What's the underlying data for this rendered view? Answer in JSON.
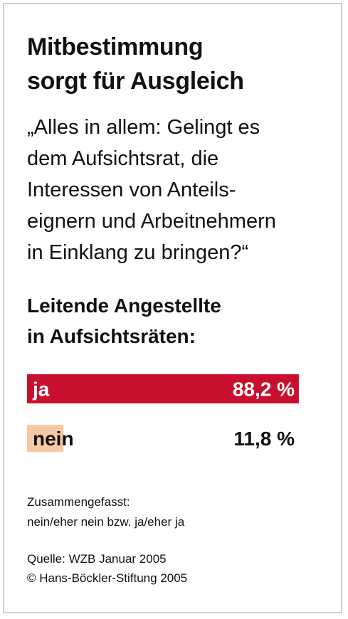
{
  "title_lines": [
    "Mitbestimmung",
    "sorgt für Ausgleich"
  ],
  "question_lines": [
    "„Alles in allem: Gelingt es",
    "dem Aufsichtsrat, die",
    "Interessen von Anteils-",
    "eignern und Arbeitnehmern",
    "in Einklang zu bringen?“"
  ],
  "subtitle_lines": [
    "Leitende Angestellte",
    "in Aufsichtsräten:"
  ],
  "colors": {
    "bar": "#c8102e",
    "bar_text": "#ffffff",
    "value_text": "#111111"
  },
  "chart_data": {
    "type": "bar",
    "orientation": "horizontal",
    "categories": [
      "ja",
      "nein"
    ],
    "values": [
      88.2,
      11.8
    ],
    "value_labels": [
      "88,2 %",
      "11,8 %"
    ],
    "bar_colors": [
      "#c8102e",
      "#f5c9a6"
    ],
    "xlim": [
      0,
      100
    ]
  },
  "note_lines": [
    "Zusammengefasst:",
    "nein/eher nein bzw. ja/eher ja"
  ],
  "source_lines": [
    "Quelle: WZB Januar 2005",
    "© Hans-Böckler-Stiftung 2005"
  ]
}
